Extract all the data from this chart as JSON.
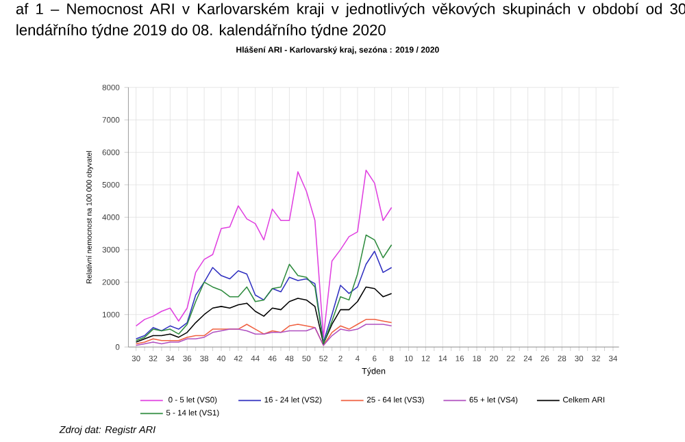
{
  "chart_data": {
    "type": "line",
    "title": "af 1 – Nemocnost ARI v Karlovarském kraji v jednotlivých věkových skupinách v období od 30 lendářního týdne 2019 do 08. kalendářního týdne 2020",
    "subtitle": "Hlášení ARI  -  Karlovarský kraj, sezóna : 2019 / 2020",
    "xlabel": "Týden",
    "ylabel": "Relativní nemocnost na 100 000 obyvatel",
    "annotations": [
      "Zdroj dat: Registr ARI"
    ],
    "categories": [
      "30",
      null,
      "32",
      null,
      "34",
      null,
      "36",
      null,
      "38",
      null,
      "40",
      null,
      "42",
      null,
      "44",
      null,
      "46",
      null,
      "48",
      null,
      "50",
      null,
      "52",
      null,
      "2",
      null,
      "4",
      null,
      "6",
      null,
      "8",
      null,
      "10",
      null,
      "12",
      null,
      "14",
      null,
      "16",
      null,
      "18",
      null,
      "20",
      null,
      "22",
      null,
      "24",
      null,
      "26",
      null,
      "28",
      null,
      "30",
      null,
      "32",
      null,
      "34"
    ],
    "ylim": [
      0,
      8000
    ],
    "yticks": [
      0,
      1000,
      2000,
      3000,
      4000,
      5000,
      6000,
      7000,
      8000
    ],
    "grid": true,
    "legend": "bottom",
    "series": [
      {
        "name": "0 - 5 let (VS0)",
        "color": "#e040e0",
        "values": [
          650,
          850,
          950,
          1100,
          1200,
          800,
          1200,
          2300,
          2700,
          2850,
          3650,
          3700,
          4350,
          3950,
          3800,
          3300,
          4250,
          3900,
          3900,
          5400,
          4800,
          3900,
          300,
          2650,
          3000,
          3400,
          3550,
          5450,
          5050,
          3900,
          4300,
          null,
          null,
          null,
          null,
          null,
          null,
          null,
          null,
          null,
          null,
          null,
          null,
          null,
          null,
          null,
          null,
          null,
          null,
          null,
          null,
          null,
          null,
          null,
          null,
          null,
          null
        ]
      },
      {
        "name": "16 - 24 let (VS2)",
        "color": "#3030c0",
        "values": [
          250,
          350,
          600,
          500,
          650,
          550,
          750,
          1600,
          2000,
          2450,
          2200,
          2100,
          2350,
          2250,
          1600,
          1450,
          1800,
          1700,
          2150,
          2050,
          2100,
          1950,
          150,
          1000,
          1900,
          1650,
          1850,
          2550,
          2950,
          2300,
          2450,
          null,
          null,
          null,
          null,
          null,
          null,
          null,
          null,
          null,
          null,
          null,
          null,
          null,
          null,
          null,
          null,
          null,
          null,
          null,
          null,
          null,
          null,
          null,
          null,
          null,
          null
        ]
      },
      {
        "name": "25 - 64 let (VS3)",
        "color": "#f06040",
        "values": [
          100,
          150,
          250,
          200,
          200,
          200,
          300,
          350,
          350,
          550,
          550,
          550,
          550,
          700,
          550,
          400,
          500,
          450,
          650,
          700,
          650,
          600,
          50,
          450,
          650,
          550,
          700,
          850,
          850,
          800,
          750,
          null,
          null,
          null,
          null,
          null,
          null,
          null,
          null,
          null,
          null,
          null,
          null,
          null,
          null,
          null,
          null,
          null,
          null,
          null,
          null,
          null,
          null,
          null,
          null,
          null,
          null
        ]
      },
      {
        "name": "65 + let (VS4)",
        "color": "#b050c0",
        "values": [
          50,
          100,
          150,
          100,
          150,
          150,
          250,
          250,
          300,
          450,
          500,
          550,
          550,
          500,
          400,
          400,
          450,
          450,
          500,
          500,
          500,
          600,
          50,
          350,
          550,
          500,
          550,
          700,
          700,
          700,
          650,
          null,
          null,
          null,
          null,
          null,
          null,
          null,
          null,
          null,
          null,
          null,
          null,
          null,
          null,
          null,
          null,
          null,
          null,
          null,
          null,
          null,
          null,
          null,
          null,
          null,
          null
        ]
      },
      {
        "name": "Celkem ARI",
        "color": "#000000",
        "values": [
          150,
          250,
          350,
          350,
          400,
          300,
          450,
          750,
          1000,
          1200,
          1250,
          1200,
          1300,
          1350,
          1100,
          950,
          1200,
          1150,
          1400,
          1500,
          1450,
          1250,
          100,
          700,
          1150,
          1150,
          1400,
          1850,
          1800,
          1550,
          1650,
          null,
          null,
          null,
          null,
          null,
          null,
          null,
          null,
          null,
          null,
          null,
          null,
          null,
          null,
          null,
          null,
          null,
          null,
          null,
          null,
          null,
          null,
          null,
          null,
          null,
          null
        ]
      },
      {
        "name": "5 - 14 let (VS1)",
        "color": "#2e8b3e",
        "values": [
          200,
          300,
          550,
          500,
          550,
          400,
          700,
          1400,
          2000,
          1850,
          1750,
          1550,
          1550,
          1850,
          1400,
          1450,
          1800,
          1850,
          2550,
          2200,
          2150,
          1850,
          100,
          800,
          1550,
          1450,
          2250,
          3450,
          3300,
          2750,
          3150,
          null,
          null,
          null,
          null,
          null,
          null,
          null,
          null,
          null,
          null,
          null,
          null,
          null,
          null,
          null,
          null,
          null,
          null,
          null,
          null,
          null,
          null,
          null,
          null,
          null,
          null
        ]
      }
    ]
  }
}
